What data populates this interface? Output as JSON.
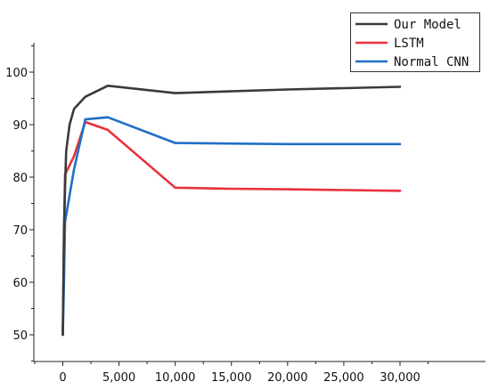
{
  "chart_data": {
    "type": "line",
    "title": "",
    "xlabel": "",
    "ylabel": "",
    "xlim": [
      -2500,
      32000
    ],
    "ylim": [
      45,
      105
    ],
    "xticks": [
      0,
      5000,
      10000,
      15000,
      20000,
      25000,
      30000
    ],
    "xtick_labels": [
      "0",
      "5,000",
      "10,000",
      "15,000",
      "20,000",
      "25,000",
      "30,000"
    ],
    "yticks": [
      50,
      60,
      70,
      80,
      90,
      100
    ],
    "ytick_labels": [
      "50",
      "60",
      "70",
      "80",
      "90",
      "100"
    ],
    "grid": false,
    "legend_position": "top-right",
    "series": [
      {
        "name": "Our Model",
        "color": "#3a3a3a",
        "points": [
          [
            0,
            50
          ],
          [
            100,
            70
          ],
          [
            200,
            78
          ],
          [
            300,
            85
          ],
          [
            600,
            90
          ],
          [
            1000,
            93
          ],
          [
            2000,
            95.3
          ],
          [
            4000,
            97.4
          ],
          [
            10000,
            96
          ],
          [
            20000,
            96.7
          ],
          [
            30000,
            97.2
          ]
        ]
      },
      {
        "name": "LSTM",
        "color": "#e8313a",
        "points": [
          [
            0,
            50
          ],
          [
            100,
            68
          ],
          [
            200,
            80.5
          ],
          [
            1000,
            84
          ],
          [
            2000,
            90.5
          ],
          [
            4000,
            89
          ],
          [
            10000,
            78
          ],
          [
            15000,
            77.8
          ],
          [
            20000,
            77.7
          ],
          [
            30000,
            77.4
          ]
        ]
      },
      {
        "name": "Normal CNN",
        "color": "#1f6fc5",
        "points": [
          [
            0,
            50
          ],
          [
            100,
            60
          ],
          [
            200,
            71.5
          ],
          [
            1000,
            81.5
          ],
          [
            2000,
            91
          ],
          [
            4000,
            91.4
          ],
          [
            10000,
            86.5
          ],
          [
            20000,
            86.3
          ],
          [
            30000,
            86.3
          ]
        ]
      }
    ]
  }
}
